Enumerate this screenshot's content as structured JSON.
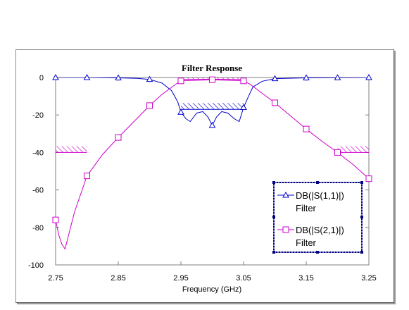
{
  "chart_data": {
    "type": "line",
    "title": "Filter Response",
    "xlabel": "Frequency (GHz)",
    "ylabel": "",
    "xlim": [
      2.75,
      3.25
    ],
    "ylim": [
      -100,
      0
    ],
    "xticks": [
      "2.75",
      "2.85",
      "2.95",
      "3.05",
      "3.15",
      "3.25"
    ],
    "yticks": [
      "0",
      "-20",
      "-40",
      "-60",
      "-80",
      "-100"
    ],
    "grid": false,
    "legend_position": "bottom-right",
    "series": [
      {
        "name": "DB(|S(1,1)|)",
        "sub": "Filter",
        "color": "#0000cc",
        "marker": "triangle",
        "x": [
          2.75,
          2.8,
          2.85,
          2.88,
          2.9,
          2.92,
          2.935,
          2.945,
          2.95,
          2.958,
          2.965,
          2.975,
          2.985,
          2.993,
          3.0,
          3.007,
          3.015,
          3.025,
          3.035,
          3.043,
          3.05,
          3.058,
          3.065,
          3.08,
          3.1,
          3.15,
          3.2,
          3.25
        ],
        "y": [
          0,
          0,
          -0.2,
          -0.5,
          -1,
          -3,
          -7,
          -13,
          -18.5,
          -22,
          -23.5,
          -19,
          -18.2,
          -21,
          -25.5,
          -21,
          -18.2,
          -19,
          -22,
          -23.5,
          -16,
          -10,
          -5,
          -2,
          -0.6,
          -0.2,
          -0.1,
          0
        ],
        "marker_x": [
          2.75,
          2.8,
          2.85,
          2.9,
          2.95,
          3.0,
          3.05,
          3.1,
          3.15,
          3.2,
          3.25
        ]
      },
      {
        "name": "DB(|S(2,1)|)",
        "sub": "Filter",
        "color": "#cc00cc",
        "marker": "square",
        "x": [
          2.75,
          2.755,
          2.76,
          2.765,
          2.77,
          2.78,
          2.8,
          2.825,
          2.85,
          2.875,
          2.9,
          2.92,
          2.94,
          2.95,
          3.0,
          3.05,
          3.06,
          3.08,
          3.1,
          3.125,
          3.15,
          3.175,
          3.2,
          3.225,
          3.25
        ],
        "y": [
          -76,
          -84,
          -89,
          -91.5,
          -85,
          -72,
          -52.5,
          -41,
          -32,
          -23.5,
          -15,
          -9,
          -4,
          -1.8,
          -1.2,
          -1.8,
          -3.5,
          -8.5,
          -13.5,
          -20.5,
          -27.5,
          -34,
          -40,
          -46.5,
          -54
        ],
        "marker_x": [
          2.75,
          2.8,
          2.85,
          2.9,
          2.95,
          3.0,
          3.05,
          3.1,
          3.15,
          3.2,
          3.25
        ]
      }
    ],
    "goals": [
      {
        "x": [
          2.75,
          2.8
        ],
        "y": -40,
        "color": "#cc00cc"
      },
      {
        "x": [
          3.2,
          3.25
        ],
        "y": -40,
        "color": "#cc00cc"
      },
      {
        "x": [
          2.95,
          3.05
        ],
        "y": -1,
        "color": "#cc00cc"
      },
      {
        "x": [
          2.95,
          3.05
        ],
        "y": -17,
        "color": "#0000cc"
      }
    ]
  }
}
